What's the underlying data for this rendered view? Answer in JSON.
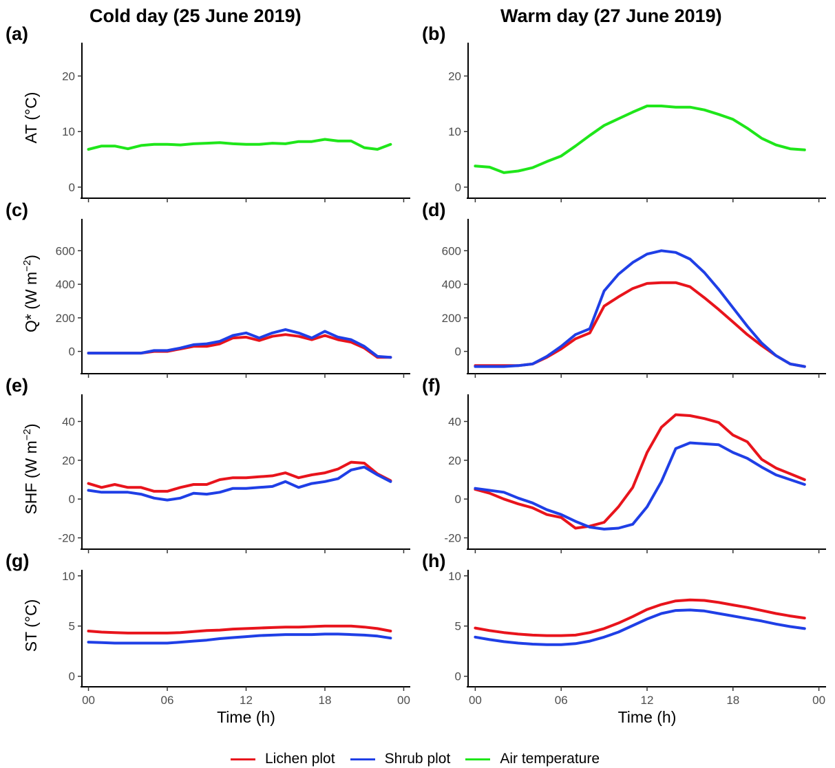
{
  "column_titles": [
    "Cold day (25 June 2019)",
    "Warm day (27 June 2019)"
  ],
  "legend": [
    {
      "label": "Lichen plot",
      "color": "#e8141c"
    },
    {
      "label": "Shrub plot",
      "color": "#1f3fe6"
    },
    {
      "label": "Air temperature",
      "color": "#1fe61a"
    }
  ],
  "colors": {
    "lichen": "#e8141c",
    "shrub": "#1f3fe6",
    "air": "#1fe61a"
  },
  "chart_data": [
    {
      "id": "a",
      "panel_label": "(a)",
      "type": "line",
      "title": "Cold day (25 June 2019)",
      "ylabel_main": "AT (°C)",
      "ylabel_sup": "",
      "ylabel_tail": "",
      "xlabel": "",
      "ylim": [
        -1,
        26
      ],
      "yticks": [
        0,
        10,
        20
      ],
      "xticks": [
        "00",
        "06",
        "12",
        "18",
        "00"
      ],
      "xlim": [
        -0.5,
        24.5
      ],
      "series": [
        {
          "name": "Air temperature",
          "key": "air",
          "x": [
            0,
            1,
            2,
            3,
            4,
            5,
            6,
            7,
            8,
            9,
            10,
            11,
            12,
            13,
            14,
            15,
            16,
            17,
            18,
            19,
            20,
            21,
            22,
            23
          ],
          "values": [
            6.8,
            7.4,
            7.4,
            6.9,
            7.5,
            7.7,
            7.7,
            7.6,
            7.8,
            7.9,
            8.0,
            7.8,
            7.7,
            7.7,
            7.9,
            7.8,
            8.2,
            8.2,
            8.6,
            8.3,
            8.3,
            7.1,
            6.8,
            7.7
          ]
        }
      ]
    },
    {
      "id": "b",
      "panel_label": "(b)",
      "type": "line",
      "title": "Warm day (27 June 2019)",
      "ylabel_main": "",
      "ylabel_sup": "",
      "ylabel_tail": "",
      "xlabel": "",
      "ylim": [
        -1,
        26
      ],
      "yticks": [
        0,
        10,
        20
      ],
      "xticks": [
        "00",
        "06",
        "12",
        "18",
        "00"
      ],
      "xlim": [
        -0.5,
        24.5
      ],
      "series": [
        {
          "name": "Air temperature",
          "key": "air",
          "x": [
            0,
            1,
            2,
            3,
            4,
            5,
            6,
            7,
            8,
            9,
            10,
            11,
            12,
            13,
            14,
            15,
            16,
            17,
            18,
            19,
            20,
            21,
            22,
            23
          ],
          "values": [
            3.8,
            3.6,
            2.6,
            2.9,
            3.5,
            4.6,
            5.6,
            7.4,
            9.3,
            11.1,
            12.3,
            13.5,
            14.6,
            14.6,
            14.4,
            14.4,
            13.9,
            13.1,
            12.2,
            10.6,
            8.8,
            7.6,
            6.9,
            6.7
          ]
        }
      ]
    },
    {
      "id": "c",
      "panel_label": "(c)",
      "type": "line",
      "ylabel_main": "Q* (W m",
      "ylabel_sup": "−2",
      "ylabel_tail": ")",
      "xlabel": "",
      "ylim": [
        -100,
        790
      ],
      "yticks": [
        0,
        200,
        400,
        600
      ],
      "xticks": [
        "00",
        "06",
        "12",
        "18",
        "00"
      ],
      "xlim": [
        -0.5,
        24.5
      ],
      "series": [
        {
          "name": "Lichen plot",
          "key": "lichen",
          "x": [
            0,
            1,
            2,
            3,
            4,
            5,
            6,
            7,
            8,
            9,
            10,
            11,
            12,
            13,
            14,
            15,
            16,
            17,
            18,
            19,
            20,
            21,
            22,
            23
          ],
          "values": [
            -10,
            -10,
            -10,
            -10,
            -10,
            0,
            0,
            15,
            30,
            30,
            45,
            80,
            85,
            65,
            90,
            100,
            90,
            70,
            95,
            70,
            55,
            20,
            -35,
            -35
          ]
        },
        {
          "name": "Shrub plot",
          "key": "shrub",
          "x": [
            0,
            1,
            2,
            3,
            4,
            5,
            6,
            7,
            8,
            9,
            10,
            11,
            12,
            13,
            14,
            15,
            16,
            17,
            18,
            19,
            20,
            21,
            22,
            23
          ],
          "values": [
            -10,
            -10,
            -10,
            -10,
            -10,
            5,
            5,
            20,
            40,
            45,
            60,
            95,
            110,
            80,
            110,
            130,
            110,
            80,
            120,
            85,
            70,
            30,
            -30,
            -35
          ]
        }
      ]
    },
    {
      "id": "d",
      "panel_label": "(d)",
      "type": "line",
      "ylabel_main": "",
      "ylabel_sup": "",
      "ylabel_tail": "",
      "xlabel": "",
      "ylim": [
        -100,
        790
      ],
      "yticks": [
        0,
        200,
        400,
        600
      ],
      "xticks": [
        "00",
        "06",
        "12",
        "18",
        "00"
      ],
      "xlim": [
        -0.5,
        24.5
      ],
      "series": [
        {
          "name": "Lichen plot",
          "key": "lichen",
          "x": [
            0,
            1,
            2,
            3,
            4,
            5,
            6,
            7,
            8,
            9,
            10,
            11,
            12,
            13,
            14,
            15,
            16,
            17,
            18,
            19,
            20,
            21,
            22,
            23
          ],
          "values": [
            -85,
            -85,
            -85,
            -85,
            -75,
            -35,
            15,
            75,
            110,
            270,
            325,
            375,
            405,
            410,
            410,
            385,
            320,
            250,
            175,
            100,
            35,
            -25,
            -75,
            -90
          ]
        },
        {
          "name": "Shrub plot",
          "key": "shrub",
          "x": [
            0,
            1,
            2,
            3,
            4,
            5,
            6,
            7,
            8,
            9,
            10,
            11,
            12,
            13,
            14,
            15,
            16,
            17,
            18,
            19,
            20,
            21,
            22,
            23
          ],
          "values": [
            -90,
            -90,
            -90,
            -85,
            -75,
            -30,
            30,
            100,
            135,
            360,
            460,
            530,
            580,
            600,
            590,
            550,
            470,
            370,
            260,
            150,
            50,
            -25,
            -75,
            -90
          ]
        }
      ]
    },
    {
      "id": "e",
      "panel_label": "(e)",
      "type": "line",
      "ylabel_main": "SHF (W m",
      "ylabel_sup": "−2",
      "ylabel_tail": ")",
      "xlabel": "",
      "ylim": [
        -23,
        54
      ],
      "yticks": [
        -20,
        0,
        20,
        40
      ],
      "xticks": [
        "00",
        "06",
        "12",
        "18",
        "00"
      ],
      "xlim": [
        -0.5,
        24.5
      ],
      "series": [
        {
          "name": "Lichen plot",
          "key": "lichen",
          "x": [
            0,
            1,
            2,
            3,
            4,
            5,
            6,
            7,
            8,
            9,
            10,
            11,
            12,
            13,
            14,
            15,
            16,
            17,
            18,
            19,
            20,
            21,
            22,
            23
          ],
          "values": [
            8,
            6,
            7.5,
            6,
            6,
            4,
            4,
            6,
            7.5,
            7.5,
            10,
            11,
            11,
            11.5,
            12,
            13.5,
            11,
            12.5,
            13.5,
            15.5,
            19,
            18.5,
            13,
            9.5
          ]
        },
        {
          "name": "Shrub plot",
          "key": "shrub",
          "x": [
            0,
            1,
            2,
            3,
            4,
            5,
            6,
            7,
            8,
            9,
            10,
            11,
            12,
            13,
            14,
            15,
            16,
            17,
            18,
            19,
            20,
            21,
            22,
            23
          ],
          "values": [
            4.5,
            3.5,
            3.5,
            3.5,
            2.5,
            0.5,
            -0.5,
            0.5,
            3,
            2.5,
            3.5,
            5.5,
            5.5,
            6,
            6.5,
            9,
            6,
            8,
            9,
            10.5,
            15,
            16.5,
            12.5,
            9
          ]
        }
      ]
    },
    {
      "id": "f",
      "panel_label": "(f)",
      "type": "line",
      "ylabel_main": "",
      "ylabel_sup": "",
      "ylabel_tail": "",
      "xlabel": "",
      "ylim": [
        -23,
        54
      ],
      "yticks": [
        -20,
        0,
        20,
        40
      ],
      "xticks": [
        "00",
        "06",
        "12",
        "18",
        "00"
      ],
      "xlim": [
        -0.5,
        24.5
      ],
      "series": [
        {
          "name": "Lichen plot",
          "key": "lichen",
          "x": [
            0,
            1,
            2,
            3,
            4,
            5,
            6,
            7,
            8,
            9,
            10,
            11,
            12,
            13,
            14,
            15,
            16,
            17,
            18,
            19,
            20,
            21,
            22,
            23
          ],
          "values": [
            5,
            3,
            0,
            -2.5,
            -4.5,
            -8,
            -9.5,
            -15,
            -14,
            -12,
            -4,
            6,
            24,
            37,
            43.5,
            43,
            41.5,
            39.5,
            33,
            29.5,
            20.5,
            16,
            13,
            10
          ]
        },
        {
          "name": "Shrub plot",
          "key": "shrub",
          "x": [
            0,
            1,
            2,
            3,
            4,
            5,
            6,
            7,
            8,
            9,
            10,
            11,
            12,
            13,
            14,
            15,
            16,
            17,
            18,
            19,
            20,
            21,
            22,
            23
          ],
          "values": [
            5.5,
            4.5,
            3.5,
            0.5,
            -2,
            -5.5,
            -8,
            -11.5,
            -14.5,
            -15.5,
            -15,
            -13,
            -4,
            9,
            26,
            29,
            28.5,
            28,
            24,
            21,
            16.5,
            12.5,
            10,
            7.5
          ]
        }
      ]
    },
    {
      "id": "g",
      "panel_label": "(g)",
      "type": "line",
      "ylabel_main": "ST (°C)",
      "ylabel_sup": "",
      "ylabel_tail": "",
      "xlabel": "Time (h)",
      "ylim": [
        -0.5,
        10.6
      ],
      "yticks": [
        0,
        5,
        10
      ],
      "xticks": [
        "00",
        "06",
        "12",
        "18",
        "00"
      ],
      "xlim": [
        -0.5,
        24.5
      ],
      "series": [
        {
          "name": "Lichen plot",
          "key": "lichen",
          "x": [
            0,
            1,
            2,
            3,
            4,
            5,
            6,
            7,
            8,
            9,
            10,
            11,
            12,
            13,
            14,
            15,
            16,
            17,
            18,
            19,
            20,
            21,
            22,
            23
          ],
          "values": [
            4.5,
            4.4,
            4.35,
            4.3,
            4.3,
            4.3,
            4.3,
            4.35,
            4.45,
            4.55,
            4.6,
            4.7,
            4.75,
            4.8,
            4.85,
            4.9,
            4.9,
            4.95,
            5.0,
            5.0,
            5.0,
            4.9,
            4.75,
            4.5
          ]
        },
        {
          "name": "Shrub plot",
          "key": "shrub",
          "x": [
            0,
            1,
            2,
            3,
            4,
            5,
            6,
            7,
            8,
            9,
            10,
            11,
            12,
            13,
            14,
            15,
            16,
            17,
            18,
            19,
            20,
            21,
            22,
            23
          ],
          "values": [
            3.4,
            3.35,
            3.3,
            3.3,
            3.3,
            3.3,
            3.3,
            3.4,
            3.5,
            3.6,
            3.75,
            3.85,
            3.95,
            4.05,
            4.1,
            4.15,
            4.15,
            4.15,
            4.2,
            4.2,
            4.15,
            4.1,
            4.0,
            3.8
          ]
        }
      ]
    },
    {
      "id": "h",
      "panel_label": "(h)",
      "type": "line",
      "ylabel_main": "",
      "ylabel_sup": "",
      "ylabel_tail": "",
      "xlabel": "Time (h)",
      "ylim": [
        -0.5,
        10.6
      ],
      "yticks": [
        0,
        5,
        10
      ],
      "xticks": [
        "00",
        "06",
        "12",
        "18",
        "00"
      ],
      "xlim": [
        -0.5,
        24.5
      ],
      "series": [
        {
          "name": "Lichen plot",
          "key": "lichen",
          "x": [
            0,
            1,
            2,
            3,
            4,
            5,
            6,
            7,
            8,
            9,
            10,
            11,
            12,
            13,
            14,
            15,
            16,
            17,
            18,
            19,
            20,
            21,
            22,
            23
          ],
          "values": [
            4.8,
            4.55,
            4.35,
            4.2,
            4.1,
            4.05,
            4.05,
            4.1,
            4.35,
            4.75,
            5.3,
            5.95,
            6.65,
            7.15,
            7.5,
            7.6,
            7.55,
            7.35,
            7.1,
            6.85,
            6.55,
            6.25,
            6.0,
            5.8
          ]
        },
        {
          "name": "Shrub plot",
          "key": "shrub",
          "x": [
            0,
            1,
            2,
            3,
            4,
            5,
            6,
            7,
            8,
            9,
            10,
            11,
            12,
            13,
            14,
            15,
            16,
            17,
            18,
            19,
            20,
            21,
            22,
            23
          ],
          "values": [
            3.9,
            3.65,
            3.45,
            3.3,
            3.2,
            3.15,
            3.15,
            3.25,
            3.5,
            3.9,
            4.4,
            5.05,
            5.7,
            6.25,
            6.55,
            6.6,
            6.5,
            6.25,
            6.0,
            5.75,
            5.5,
            5.2,
            4.95,
            4.75
          ]
        }
      ]
    }
  ]
}
